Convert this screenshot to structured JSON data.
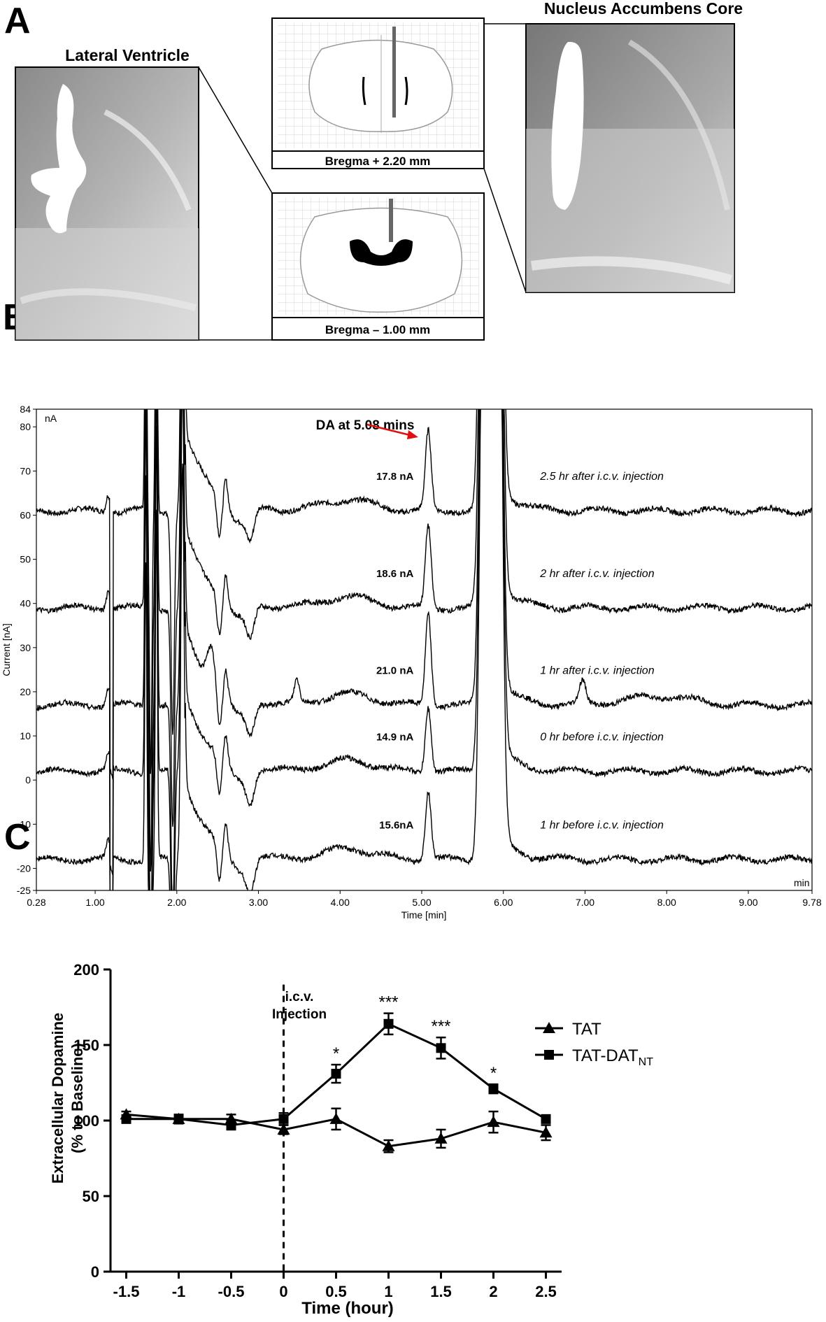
{
  "panel_a": {
    "letter": "A",
    "left_title": "Lateral Ventricle",
    "right_title": "Nucleus Accumbens Core",
    "atlas_top_label": "Bregma + 2.20 mm",
    "atlas_bottom_label": "Bregma – 1.00 mm"
  },
  "panel_b": {
    "letter": "B",
    "unit_label": "nA",
    "x_unit_label": "min",
    "annotation": "DA at 5.08 mins"
  },
  "panel_c": {
    "letter": "C",
    "injection_label_1": "i.c.v.",
    "injection_label_2": "Injection"
  },
  "chart_data": [
    {
      "type": "line",
      "xlabel": "Time [min]",
      "ylabel": "Current [nA]",
      "xlim": [
        0.28,
        9.78
      ],
      "ylim": [
        -25,
        84
      ],
      "x_ticks": [
        "0.28",
        "1.00",
        "2.00",
        "3.00",
        "4.00",
        "5.00",
        "6.00",
        "7.00",
        "8.00",
        "9.00",
        "9.78"
      ],
      "x_tick_values": [
        0.28,
        1,
        2,
        3,
        4,
        5,
        6,
        7,
        8,
        9,
        9.78
      ],
      "y_ticks": [
        "84",
        "80",
        "70",
        "60",
        "50",
        "40",
        "30",
        "20",
        "10",
        "0",
        "-10",
        "-20",
        "-25"
      ],
      "y_tick_values": [
        84,
        80,
        70,
        60,
        50,
        40,
        30,
        20,
        10,
        0,
        -10,
        -20,
        -25
      ],
      "series": [
        {
          "name": "2.5 hr after i.c.v. injection",
          "baseline": 61,
          "da_peak_label": "17.8 nA",
          "da_peak_time": 5.08,
          "da_peak_height": 17.8
        },
        {
          "name": "2 hr after i.c.v. injection",
          "baseline": 39,
          "da_peak_label": "18.6 nA",
          "da_peak_time": 5.08,
          "da_peak_height": 18.6
        },
        {
          "name": "1 hr after i.c.v. injection",
          "baseline": 17,
          "da_peak_label": "21.0 nA",
          "da_peak_time": 5.08,
          "da_peak_height": 21.0
        },
        {
          "name": "0 hr before i.c.v. injection",
          "baseline": 2,
          "da_peak_label": "14.9 nA",
          "da_peak_time": 5.08,
          "da_peak_height": 14.9
        },
        {
          "name": "1 hr before i.c.v. injection",
          "baseline": -18,
          "da_peak_label": "15.6nA",
          "da_peak_time": 5.08,
          "da_peak_height": 15.6
        }
      ]
    },
    {
      "type": "line",
      "xlabel": "Time (hour)",
      "ylabel": "Extracellular Dopamine (% to Baseline)",
      "ylabel_line1": "Extracellular Dopamine",
      "ylabel_line2": "(% to Baseline)",
      "xlim": [
        -1.65,
        2.65
      ],
      "ylim": [
        0,
        200
      ],
      "x_ticks": [
        "-1.5",
        "-1",
        "-0.5",
        "0",
        "0.5",
        "1",
        "1.5",
        "2",
        "2.5"
      ],
      "x_tick_values": [
        -1.5,
        -1,
        -0.5,
        0,
        0.5,
        1,
        1.5,
        2,
        2.5
      ],
      "y_ticks": [
        "0",
        "50",
        "100",
        "150",
        "200"
      ],
      "y_tick_values": [
        0,
        50,
        100,
        150,
        200
      ],
      "x": [
        -1.5,
        -1,
        -0.5,
        0,
        0.5,
        1,
        1.5,
        2,
        2.5
      ],
      "series": [
        {
          "name": "TAT",
          "marker": "triangle",
          "values": [
            104,
            101,
            101,
            94,
            101,
            83,
            88,
            99,
            92
          ],
          "errors": [
            2,
            2,
            3,
            3,
            7,
            4,
            6,
            7,
            5
          ]
        },
        {
          "name": "TAT-DAT",
          "name_subscript": "NT",
          "marker": "square",
          "values": [
            101,
            101,
            97,
            101,
            131,
            164,
            148,
            121,
            101
          ],
          "errors": [
            2,
            3,
            3,
            4,
            6,
            7,
            7,
            3,
            2
          ]
        }
      ],
      "significance": [
        {
          "x": 0.5,
          "label": "*"
        },
        {
          "x": 1,
          "label": "***"
        },
        {
          "x": 1.5,
          "label": "***"
        },
        {
          "x": 2,
          "label": "*"
        }
      ],
      "vertical_marker_x": 0,
      "legend_position": "top-right"
    }
  ]
}
